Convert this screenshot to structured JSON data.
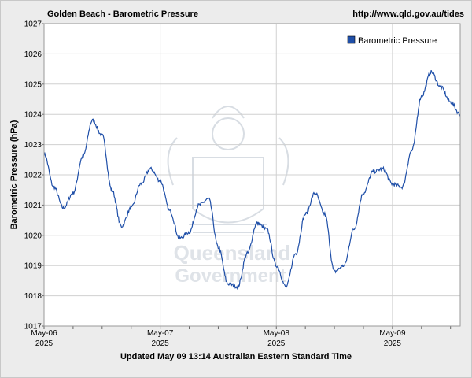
{
  "header": {
    "title": "Golden Beach - Barometric Pressure",
    "url": "http://www.qld.gov.au/tides"
  },
  "footer": {
    "updated": "Updated May 09 13:14 Australian Eastern Standard Time"
  },
  "watermark": {
    "line1": "Queensland",
    "line2": "Government"
  },
  "colors": {
    "series": "#1f4fa8",
    "plot_bg": "#ffffff",
    "grid": "#d0d0d0",
    "watermark": "#dfe3e8"
  },
  "chart_data": {
    "type": "line",
    "title": "Golden Beach - Barometric Pressure",
    "ylabel": "Barometric Pressure (hPa)",
    "xlabel": "",
    "ylim": [
      1017,
      1027
    ],
    "xlim": [
      "2025-05-06 00:00",
      "2025-05-09 14:00"
    ],
    "yticks": [
      1017,
      1018,
      1019,
      1020,
      1021,
      1022,
      1023,
      1024,
      1025,
      1026,
      1027
    ],
    "xticks": [
      {
        "day": "May-06",
        "year": "2025"
      },
      {
        "day": "May-07",
        "year": "2025"
      },
      {
        "day": "May-08",
        "year": "2025"
      },
      {
        "day": "May-09",
        "year": "2025"
      }
    ],
    "grid": true,
    "legend": "top-right",
    "series": [
      {
        "name": "Barometric Pressure",
        "x": [
          "2025-05-06 00:00",
          "2025-05-06 02:00",
          "2025-05-06 04:00",
          "2025-05-06 06:00",
          "2025-05-06 08:00",
          "2025-05-06 10:00",
          "2025-05-06 12:00",
          "2025-05-06 14:00",
          "2025-05-06 16:00",
          "2025-05-06 18:00",
          "2025-05-06 20:00",
          "2025-05-06 22:00",
          "2025-05-07 00:00",
          "2025-05-07 02:00",
          "2025-05-07 04:00",
          "2025-05-07 06:00",
          "2025-05-07 08:00",
          "2025-05-07 10:00",
          "2025-05-07 12:00",
          "2025-05-07 14:00",
          "2025-05-07 16:00",
          "2025-05-07 18:00",
          "2025-05-07 20:00",
          "2025-05-07 22:00",
          "2025-05-08 00:00",
          "2025-05-08 02:00",
          "2025-05-08 04:00",
          "2025-05-08 06:00",
          "2025-05-08 08:00",
          "2025-05-08 10:00",
          "2025-05-08 12:00",
          "2025-05-08 14:00",
          "2025-05-08 16:00",
          "2025-05-08 18:00",
          "2025-05-08 20:00",
          "2025-05-08 22:00",
          "2025-05-09 00:00",
          "2025-05-09 02:00",
          "2025-05-09 04:00",
          "2025-05-09 06:00",
          "2025-05-09 08:00",
          "2025-05-09 10:00",
          "2025-05-09 12:00",
          "2025-05-09 14:00"
        ],
        "values": [
          1022.7,
          1021.6,
          1020.9,
          1021.4,
          1022.6,
          1023.8,
          1023.3,
          1021.5,
          1020.3,
          1020.9,
          1021.7,
          1022.2,
          1021.8,
          1020.8,
          1019.9,
          1020.1,
          1021.0,
          1021.2,
          1019.6,
          1018.4,
          1018.3,
          1019.4,
          1020.4,
          1020.2,
          1019.0,
          1018.3,
          1019.4,
          1020.7,
          1021.4,
          1020.7,
          1018.8,
          1019.0,
          1020.2,
          1021.4,
          1022.1,
          1022.2,
          1021.7,
          1021.6,
          1022.8,
          1024.6,
          1025.4,
          1024.9,
          1024.4,
          1024.0
        ]
      }
    ]
  }
}
